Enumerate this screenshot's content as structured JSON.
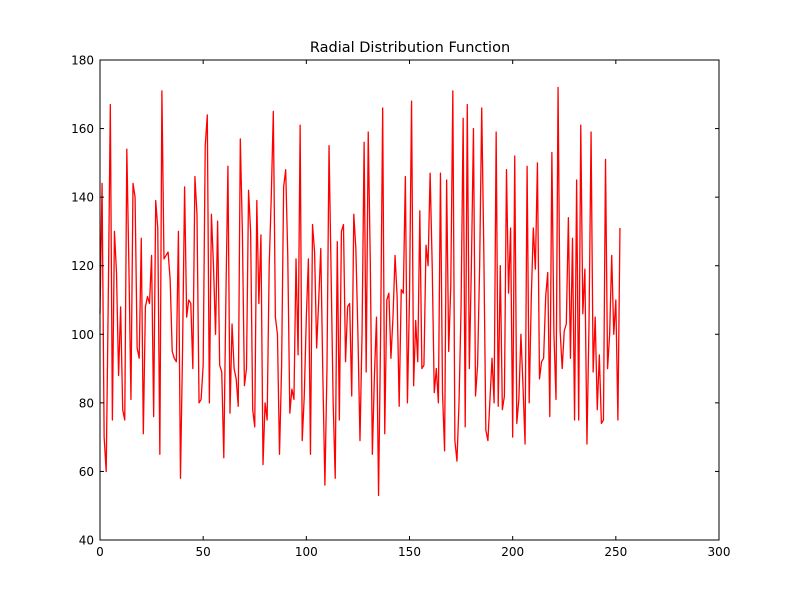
{
  "chart_data": {
    "type": "line",
    "title": "Radial Distribution Function",
    "xlabel": "",
    "ylabel": "",
    "xlim": [
      0,
      300
    ],
    "ylim": [
      40,
      180
    ],
    "x_ticks": [
      0,
      50,
      100,
      150,
      200,
      250,
      300
    ],
    "y_ticks": [
      40,
      60,
      80,
      100,
      120,
      140,
      160,
      180
    ],
    "grid": false,
    "legend": "none",
    "series": [
      {
        "color": "#ff0000",
        "x_start": 0,
        "x_step": 1,
        "values": [
          106,
          144,
          70,
          60,
          110,
          167,
          75,
          130,
          118,
          88,
          108,
          78,
          75,
          154,
          120,
          81,
          144,
          140,
          96,
          93,
          128,
          71,
          108,
          111,
          109,
          123,
          76,
          139,
          131,
          65,
          171,
          122,
          123,
          124,
          116,
          95,
          93,
          92,
          130,
          58,
          95,
          143,
          105,
          110,
          109,
          90,
          146,
          135,
          80,
          81,
          91,
          155,
          164,
          80,
          135,
          120,
          100,
          133,
          91,
          89,
          64,
          110,
          149,
          77,
          103,
          90,
          87,
          79,
          157,
          130,
          85,
          90,
          142,
          130,
          78,
          73,
          139,
          109,
          129,
          62,
          80,
          75,
          120,
          140,
          165,
          105,
          100,
          65,
          90,
          143,
          148,
          123,
          77,
          84,
          81,
          122,
          94,
          161,
          69,
          82,
          105,
          122,
          65,
          132,
          124,
          96,
          110,
          125,
          88,
          56,
          90,
          155,
          118,
          80,
          58,
          127,
          75,
          130,
          132,
          92,
          108,
          109,
          82,
          135,
          125,
          100,
          69,
          100,
          156,
          89,
          159,
          121,
          65,
          88,
          105,
          53,
          100,
          166,
          71,
          110,
          112,
          93,
          105,
          123,
          111,
          79,
          113,
          112,
          146,
          80,
          111,
          168,
          85,
          104,
          92,
          136,
          90,
          91,
          126,
          120,
          147,
          120,
          83,
          90,
          80,
          147,
          83,
          66,
          145,
          95,
          114,
          171,
          69,
          63,
          80,
          108,
          163,
          73,
          167,
          90,
          120,
          160,
          82,
          91,
          120,
          166,
          125,
          72,
          69,
          81,
          93,
          80,
          159,
          79,
          120,
          78,
          82,
          148,
          112,
          131,
          70,
          152,
          74,
          81,
          100,
          85,
          68,
          149,
          80,
          110,
          131,
          119,
          150,
          87,
          92,
          93,
          111,
          118,
          76,
          153,
          100,
          81,
          172,
          101,
          90,
          101,
          103,
          134,
          93,
          128,
          75,
          145,
          75,
          161,
          106,
          119,
          68,
          103,
          159,
          89,
          105,
          78,
          94,
          74,
          75,
          151,
          90,
          100,
          123,
          100,
          110,
          75,
          131
        ]
      }
    ]
  }
}
